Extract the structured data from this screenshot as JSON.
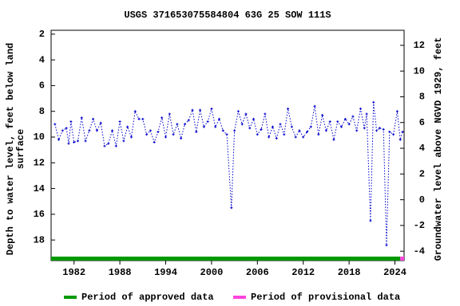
{
  "chart_data": {
    "type": "line",
    "title": "USGS 371653075584804 63G 25 SOW 111S",
    "y_label": [
      "Depth to water level, feet below land",
      "surface"
    ],
    "y2_label": "Groundwater level above NGVD 1929, feet",
    "xlim": [
      1979,
      2025.2
    ],
    "xticks": [
      1982,
      1988,
      1994,
      2000,
      2006,
      2012,
      2018,
      2024
    ],
    "ylim": [
      19.6,
      1.7
    ],
    "yticks": [
      2,
      4,
      6,
      8,
      10,
      12,
      14,
      16,
      18
    ],
    "y2lim": [
      -4.73,
      13.17
    ],
    "y2ticks": [
      -4,
      -2,
      0,
      2,
      4,
      6,
      8,
      10,
      12
    ],
    "series": [
      {
        "name": "Depth to water level",
        "color": "#0000cc",
        "x": [
          1979.5,
          1980,
          1980.5,
          1981,
          1981.3,
          1981.6,
          1982,
          1982.5,
          1983,
          1983.5,
          1984,
          1984.5,
          1985,
          1985.5,
          1986,
          1986.5,
          1987,
          1987.5,
          1988,
          1988.5,
          1989,
          1989.5,
          1990,
          1990.5,
          1991,
          1991.5,
          1992,
          1992.5,
          1993,
          1993.5,
          1994,
          1994.5,
          1995,
          1995.5,
          1996,
          1996.5,
          1997,
          1997.5,
          1998,
          1998.5,
          1999,
          1999.5,
          2000,
          2000.5,
          2001,
          2001.5,
          2002,
          2002.6,
          2003,
          2003.5,
          2004,
          2004.5,
          2005,
          2005.5,
          2006,
          2006.5,
          2007,
          2007.5,
          2008,
          2008.5,
          2009,
          2009.5,
          2010,
          2010.5,
          2011,
          2011.5,
          2012,
          2012.5,
          2013,
          2013.5,
          2014,
          2014.5,
          2015,
          2015.5,
          2016,
          2016.5,
          2017,
          2017.5,
          2018,
          2018.5,
          2019,
          2019.5,
          2020,
          2020.3,
          2020.8,
          2021.2,
          2021.6,
          2022,
          2022.5,
          2022.9,
          2023.3,
          2023.8,
          2024.3,
          2024.7,
          2025
        ],
        "values": [
          9.0,
          10.2,
          9.5,
          9.3,
          10.5,
          8.8,
          10.4,
          10.3,
          8.5,
          10.3,
          9.5,
          8.6,
          9.5,
          8.9,
          10.7,
          10.5,
          9.5,
          10.7,
          8.8,
          10.3,
          9.2,
          10.0,
          8.0,
          8.6,
          8.6,
          9.8,
          9.5,
          10.4,
          9.6,
          8.5,
          10.0,
          8.2,
          9.8,
          9.0,
          10.1,
          9.0,
          8.7,
          7.9,
          9.6,
          7.9,
          9.2,
          8.8,
          7.8,
          9.2,
          8.6,
          9.5,
          9.8,
          15.5,
          9.5,
          8.0,
          9.0,
          8.2,
          9.3,
          8.6,
          9.8,
          9.4,
          8.2,
          10.0,
          9.2,
          10.1,
          9.0,
          9.8,
          7.8,
          9.2,
          10.0,
          9.5,
          10.0,
          9.6,
          9.2,
          7.6,
          9.8,
          8.3,
          9.5,
          8.8,
          10.2,
          8.8,
          9.2,
          8.6,
          9.0,
          8.4,
          9.5,
          7.8,
          9.3,
          8.2,
          16.5,
          7.3,
          9.5,
          9.3,
          9.4,
          18.4,
          9.6,
          9.8,
          8.0,
          10.2,
          9.6
        ]
      }
    ],
    "periods": [
      {
        "name": "Period of approved data",
        "color": "#009900",
        "start": 1979,
        "end": 2024.7
      },
      {
        "name": "Period of provisional data",
        "color": "#ff44dd",
        "start": 2024.7,
        "end": 2025.2
      }
    ]
  }
}
